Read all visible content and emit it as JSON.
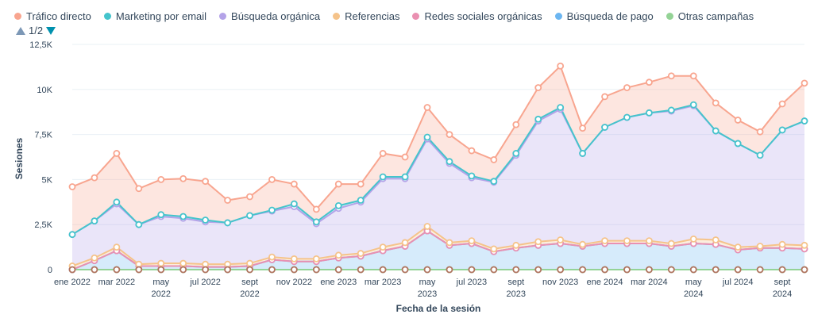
{
  "legend": [
    {
      "label": "Tráfico directo",
      "color": "#f8a58f"
    },
    {
      "label": "Marketing por email",
      "color": "#45c4cc"
    },
    {
      "label": "Búsqueda orgánica",
      "color": "#b4a3e8"
    },
    {
      "label": "Referencias",
      "color": "#f5c38a"
    },
    {
      "label": "Redes sociales orgánicas",
      "color": "#ea90b1"
    },
    {
      "label": "Búsqueda de pago",
      "color": "#6cb6f1"
    },
    {
      "label": "Otras campañas",
      "color": "#94d396"
    }
  ],
  "legend_pager": {
    "text": "1/2"
  },
  "chart_data": {
    "type": "area",
    "stacked": true,
    "xlabel": "Fecha de la sesión",
    "ylabel": "Sesiones",
    "ylim": [
      0,
      12500
    ],
    "yticks": [
      {
        "value": 0,
        "label": "0"
      },
      {
        "value": 2500,
        "label": "2,5K"
      },
      {
        "value": 5000,
        "label": "5K"
      },
      {
        "value": 7500,
        "label": "7,5K"
      },
      {
        "value": 10000,
        "label": "10K"
      },
      {
        "value": 12500,
        "label": "12,5K"
      }
    ],
    "x": [
      "ene 2022",
      "feb 2022",
      "mar 2022",
      "abr 2022",
      "may 2022",
      "jun 2022",
      "jul 2022",
      "ago 2022",
      "sept 2022",
      "oct 2022",
      "nov 2022",
      "dic 2022",
      "ene 2023",
      "feb 2023",
      "mar 2023",
      "abr 2023",
      "may 2023",
      "jun 2023",
      "jul 2023",
      "ago 2023",
      "sept 2023",
      "oct 2023",
      "nov 2023",
      "dic 2023",
      "ene 2024",
      "feb 2024",
      "mar 2024",
      "abr 2024",
      "may 2024",
      "jun 2024",
      "jul 2024",
      "ago 2024",
      "sept 2024",
      "oct 2024"
    ],
    "xtick_labels": [
      {
        "index": 0,
        "lines": [
          "ene 2022"
        ]
      },
      {
        "index": 2,
        "lines": [
          "mar 2022"
        ]
      },
      {
        "index": 4,
        "lines": [
          "may",
          "2022"
        ]
      },
      {
        "index": 6,
        "lines": [
          "jul 2022"
        ]
      },
      {
        "index": 8,
        "lines": [
          "sept",
          "2022"
        ]
      },
      {
        "index": 10,
        "lines": [
          "nov 2022"
        ]
      },
      {
        "index": 12,
        "lines": [
          "ene 2023"
        ]
      },
      {
        "index": 14,
        "lines": [
          "mar 2023"
        ]
      },
      {
        "index": 16,
        "lines": [
          "may",
          "2023"
        ]
      },
      {
        "index": 18,
        "lines": [
          "jul 2023"
        ]
      },
      {
        "index": 20,
        "lines": [
          "sept",
          "2023"
        ]
      },
      {
        "index": 22,
        "lines": [
          "nov 2023"
        ]
      },
      {
        "index": 24,
        "lines": [
          "ene 2024"
        ]
      },
      {
        "index": 26,
        "lines": [
          "mar 2024"
        ]
      },
      {
        "index": 28,
        "lines": [
          "may",
          "2024"
        ]
      },
      {
        "index": 30,
        "lines": [
          "jul 2024"
        ]
      },
      {
        "index": 32,
        "lines": [
          "sept",
          "2024"
        ]
      }
    ],
    "series": [
      {
        "name": "Otras campañas",
        "color": "#94d396",
        "values": [
          0,
          0,
          0,
          0,
          0,
          0,
          0,
          0,
          0,
          0,
          0,
          0,
          0,
          0,
          0,
          0,
          0,
          0,
          0,
          0,
          0,
          0,
          0,
          0,
          0,
          0,
          0,
          0,
          0,
          0,
          0,
          0,
          0,
          0
        ]
      },
      {
        "name": "Búsqueda de pago",
        "color": "#6cb6f1",
        "values": [
          0,
          500,
          1050,
          200,
          200,
          200,
          150,
          150,
          200,
          550,
          450,
          450,
          650,
          750,
          1050,
          1300,
          2150,
          1350,
          1450,
          1000,
          1200,
          1350,
          1450,
          1300,
          1450,
          1450,
          1450,
          1300,
          1450,
          1400,
          1100,
          1200,
          1200,
          1150
        ]
      },
      {
        "name": "Redes sociales orgánicas",
        "color": "#ea90b1",
        "values": [
          0,
          0,
          0,
          0,
          0,
          0,
          0,
          0,
          0,
          0,
          0,
          0,
          0,
          0,
          0,
          0,
          0,
          0,
          0,
          0,
          0,
          0,
          0,
          0,
          0,
          0,
          0,
          0,
          0,
          0,
          0,
          0,
          0,
          0
        ]
      },
      {
        "name": "Referencias",
        "color": "#f5c38a",
        "values": [
          200,
          150,
          200,
          100,
          150,
          150,
          150,
          150,
          150,
          150,
          150,
          150,
          150,
          150,
          200,
          200,
          250,
          150,
          150,
          150,
          150,
          200,
          200,
          100,
          150,
          150,
          150,
          150,
          250,
          250,
          150,
          100,
          200,
          200
        ]
      },
      {
        "name": "Búsqueda orgánica",
        "color": "#b4a3e8",
        "values": [
          1750,
          2050,
          2400,
          2200,
          2600,
          2500,
          2350,
          2300,
          2650,
          2550,
          2900,
          1950,
          2600,
          2850,
          3800,
          3550,
          4850,
          4400,
          3500,
          3700,
          5000,
          6700,
          7250,
          5050,
          6300,
          6850,
          7100,
          7350,
          7400,
          6050,
          5750,
          5050,
          6350,
          6900
        ]
      },
      {
        "name": "Marketing por email",
        "color": "#45c4cc",
        "values": [
          0,
          0,
          100,
          0,
          100,
          100,
          100,
          0,
          0,
          50,
          150,
          100,
          150,
          100,
          100,
          100,
          100,
          100,
          100,
          50,
          100,
          100,
          100,
          0,
          0,
          0,
          0,
          50,
          50,
          0,
          0,
          0,
          0,
          0
        ]
      },
      {
        "name": "Tráfico directo",
        "color": "#f8a58f",
        "values": [
          2650,
          2400,
          2700,
          2000,
          1950,
          2100,
          2150,
          1250,
          1050,
          1700,
          1100,
          700,
          1200,
          900,
          1300,
          1100,
          1650,
          1500,
          1400,
          1200,
          1600,
          1750,
          2300,
          1400,
          1700,
          1650,
          1700,
          1900,
          1600,
          1550,
          1300,
          1300,
          1450,
          2100
        ]
      }
    ]
  }
}
